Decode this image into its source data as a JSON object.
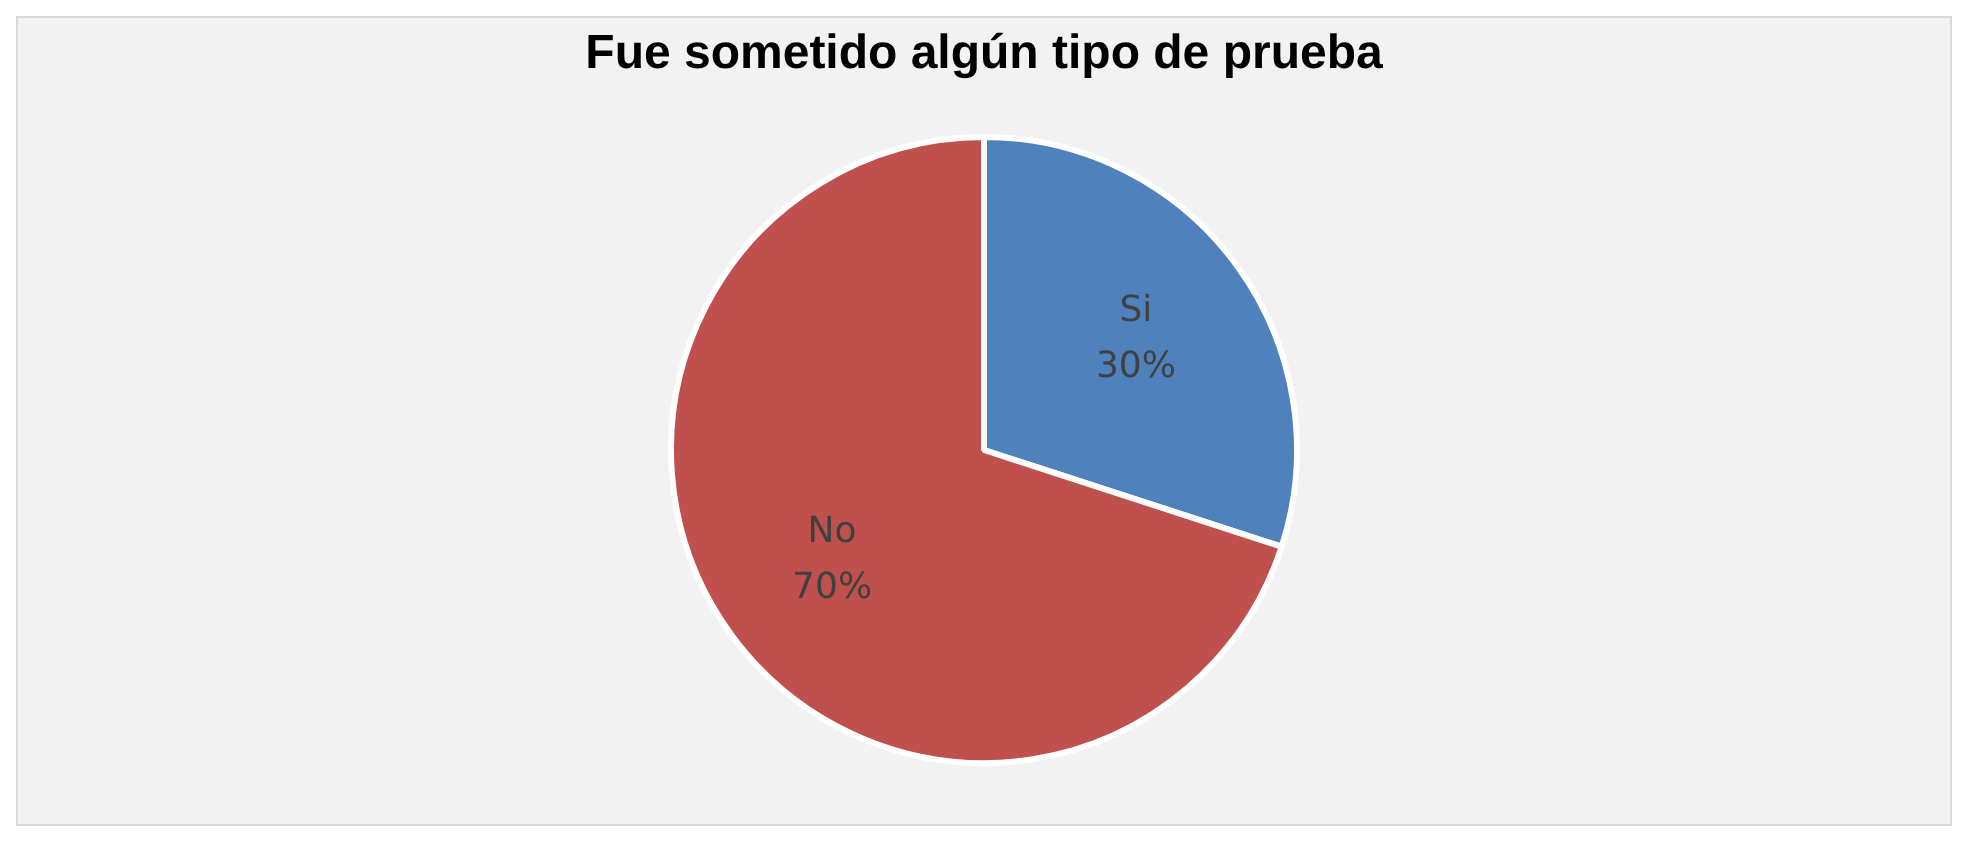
{
  "chart_data": {
    "type": "pie",
    "title": "Fue sometido algún tipo de prueba",
    "categories": [
      "Si",
      "No"
    ],
    "values": [
      30,
      70
    ],
    "colors": [
      "#4f81bd",
      "#c0504d"
    ],
    "value_labels": [
      "30%",
      "70%"
    ],
    "legend": false
  }
}
